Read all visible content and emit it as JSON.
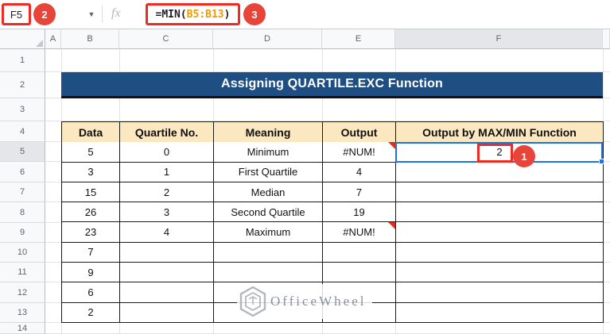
{
  "formula_bar": {
    "name_box_value": "F5",
    "fx_icon": "fx",
    "dropdown_caret": "▼",
    "formula": {
      "prefix": "=MIN(",
      "range": "B5:B13",
      "suffix": ")"
    }
  },
  "annotations": {
    "step1": "1",
    "step2": "2",
    "step3": "3"
  },
  "sheet": {
    "column_headers": [
      "A",
      "B",
      "C",
      "D",
      "E",
      "F"
    ],
    "row_numbers": [
      "1",
      "2",
      "3",
      "4",
      "5",
      "6",
      "7",
      "8",
      "9",
      "10",
      "11",
      "12",
      "13",
      "14"
    ],
    "selected_cell": "F5",
    "selected_column": "F",
    "selected_row": "5"
  },
  "banner": {
    "title": "Assigning QUARTILE.EXC Function"
  },
  "table": {
    "headers": [
      "Data",
      "Quartile No.",
      "Meaning",
      "Output",
      "Output by MAX/MIN Function"
    ],
    "rows": [
      [
        "5",
        "0",
        "Minimum",
        "#NUM!",
        "2"
      ],
      [
        "3",
        "1",
        "First Quartile",
        "4",
        ""
      ],
      [
        "15",
        "2",
        "Median",
        "7",
        ""
      ],
      [
        "26",
        "3",
        "Second Quartile",
        "19",
        ""
      ],
      [
        "23",
        "4",
        "Maximum",
        "#NUM!",
        ""
      ],
      [
        "7",
        "",
        "",
        "",
        ""
      ],
      [
        "9",
        "",
        "",
        "",
        ""
      ],
      [
        "6",
        "",
        "",
        "",
        ""
      ],
      [
        "2",
        "",
        "",
        "",
        ""
      ]
    ],
    "error_marker_rows": [
      0,
      4
    ],
    "error_marker_col": 3
  },
  "watermark": {
    "text": "OfficeWheel"
  },
  "colors": {
    "banner_bg": "#1f4e82",
    "table_header_bg": "#fbe7c0",
    "selection_blue": "#1a73e8",
    "annotation_circle_red": "#e8453a",
    "annotation_box_red": "#ee2b22",
    "formula_range_orange": "#f29900"
  }
}
